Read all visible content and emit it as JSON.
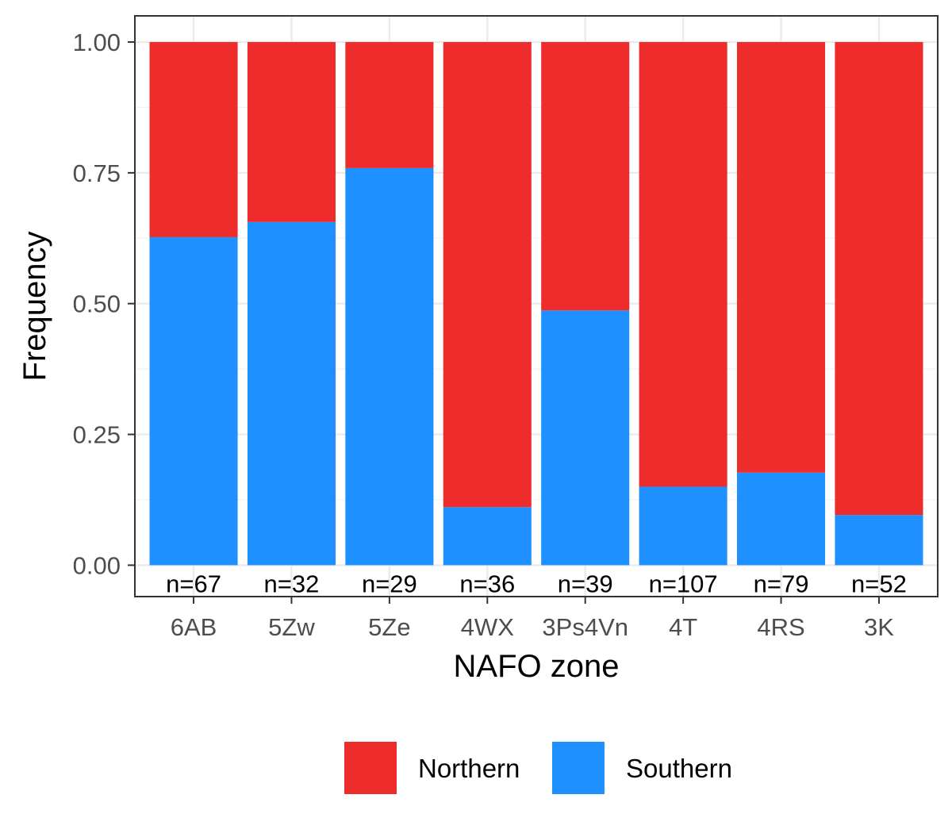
{
  "chart_data": {
    "type": "bar",
    "stacked": true,
    "categories": [
      "6AB",
      "5Zw",
      "5Ze",
      "4WX",
      "3Ps4Vn",
      "4T",
      "4RS",
      "3K"
    ],
    "series": [
      {
        "name": "Southern",
        "color": "#1E90FF",
        "values": [
          0.627,
          0.656,
          0.759,
          0.111,
          0.487,
          0.15,
          0.177,
          0.096
        ]
      },
      {
        "name": "Northern",
        "color": "#EE2C2C",
        "values": [
          0.373,
          0.344,
          0.241,
          0.889,
          0.513,
          0.85,
          0.823,
          0.904
        ]
      }
    ],
    "bar_labels": [
      "n=67",
      "n=32",
      "n=29",
      "n=36",
      "n=39",
      "n=107",
      "n=79",
      "n=52"
    ],
    "xlabel": "NAFO zone",
    "ylabel": "Frequency",
    "ylim": [
      -0.06,
      1.05
    ],
    "yticks": [
      0.0,
      0.25,
      0.5,
      0.75,
      1.0
    ],
    "ytick_labels": [
      "0.00",
      "0.25",
      "0.50",
      "0.75",
      "1.00"
    ],
    "grid": true,
    "legend": {
      "position": "bottom",
      "entries": [
        {
          "label": "Northern",
          "color": "#EE2C2C"
        },
        {
          "label": "Southern",
          "color": "#1E90FF"
        }
      ]
    }
  }
}
